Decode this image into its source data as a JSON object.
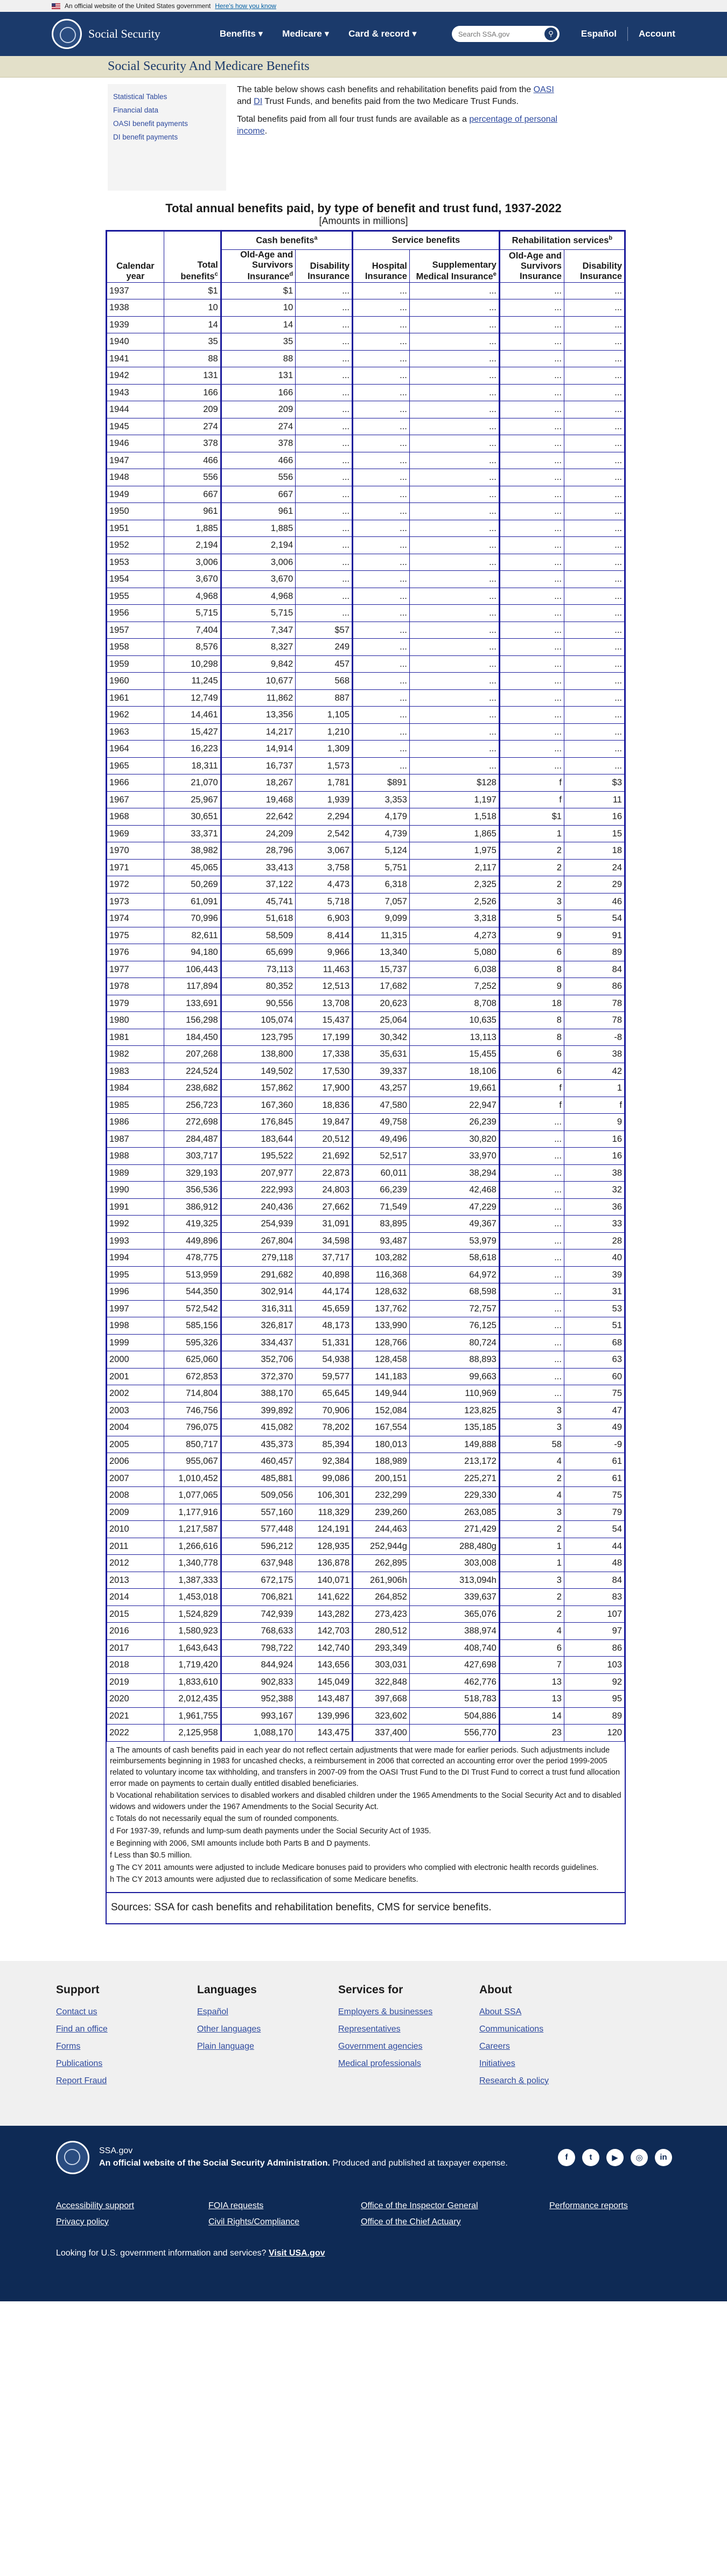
{
  "banner": {
    "text": "An official website of the United States government",
    "link": "Here's how you know"
  },
  "header": {
    "logo": "Social Security",
    "nav": [
      "Benefits",
      "Medicare",
      "Card & record"
    ],
    "search_placeholder": "Search SSA.gov",
    "lang": "Español",
    "account": "Account"
  },
  "page_title": "Social Security And Medicare Benefits",
  "sidebar": [
    "Statistical Tables",
    "Financial data",
    "OASI benefit payments",
    "DI benefit payments"
  ],
  "intro": {
    "p1_a": "The table below shows cash benefits and rehabilitation benefits paid from the ",
    "oasi": "OASI",
    "p1_b": " and ",
    "di": "DI",
    "p1_c": " Trust Funds, and benefits paid from the two Medicare Trust Funds.",
    "p2_a": "Total benefits paid from all four trust funds are available as a ",
    "p2_link": "percentage of personal income",
    "p2_b": "."
  },
  "table": {
    "title": "Total annual benefits paid, by type of benefit and trust fund, 1937-2022",
    "subtitle": "[Amounts in millions]",
    "groups": {
      "cash": "Cash benefits",
      "cash_sup": "a",
      "service": "Service benefits",
      "rehab": "Rehabilitation services",
      "rehab_sup": "b"
    },
    "headers": {
      "year": "Calendar year",
      "total": "Total benefits",
      "total_sup": "c",
      "oasi": "Old-Age and Survivors Insurance",
      "oasi_sup": "d",
      "di": "Disability Insurance",
      "hi": "Hospital Insurance",
      "smi": "Supplementary Medical Insurance",
      "smi_sup": "e",
      "r_oasi": "Old-Age and Survivors Insurance",
      "r_di": "Disability Insurance"
    },
    "rows": [
      [
        "1937",
        "$1",
        "$1",
        "...",
        "...",
        "...",
        "...",
        "..."
      ],
      [
        "1938",
        "10",
        "10",
        "...",
        "...",
        "...",
        "...",
        "..."
      ],
      [
        "1939",
        "14",
        "14",
        "...",
        "...",
        "...",
        "...",
        "..."
      ],
      [
        "1940",
        "35",
        "35",
        "...",
        "...",
        "...",
        "...",
        "..."
      ],
      [
        "1941",
        "88",
        "88",
        "...",
        "...",
        "...",
        "...",
        "..."
      ],
      [
        "1942",
        "131",
        "131",
        "...",
        "...",
        "...",
        "...",
        "..."
      ],
      [
        "1943",
        "166",
        "166",
        "...",
        "...",
        "...",
        "...",
        "..."
      ],
      [
        "1944",
        "209",
        "209",
        "...",
        "...",
        "...",
        "...",
        "..."
      ],
      [
        "1945",
        "274",
        "274",
        "...",
        "...",
        "...",
        "...",
        "..."
      ],
      [
        "1946",
        "378",
        "378",
        "...",
        "...",
        "...",
        "...",
        "..."
      ],
      [
        "1947",
        "466",
        "466",
        "...",
        "...",
        "...",
        "...",
        "..."
      ],
      [
        "1948",
        "556",
        "556",
        "...",
        "...",
        "...",
        "...",
        "..."
      ],
      [
        "1949",
        "667",
        "667",
        "...",
        "...",
        "...",
        "...",
        "..."
      ],
      [
        "1950",
        "961",
        "961",
        "...",
        "...",
        "...",
        "...",
        "..."
      ],
      [
        "1951",
        "1,885",
        "1,885",
        "...",
        "...",
        "...",
        "...",
        "..."
      ],
      [
        "1952",
        "2,194",
        "2,194",
        "...",
        "...",
        "...",
        "...",
        "..."
      ],
      [
        "1953",
        "3,006",
        "3,006",
        "...",
        "...",
        "...",
        "...",
        "..."
      ],
      [
        "1954",
        "3,670",
        "3,670",
        "...",
        "...",
        "...",
        "...",
        "..."
      ],
      [
        "1955",
        "4,968",
        "4,968",
        "...",
        "...",
        "...",
        "...",
        "..."
      ],
      [
        "1956",
        "5,715",
        "5,715",
        "...",
        "...",
        "...",
        "...",
        "..."
      ],
      [
        "1957",
        "7,404",
        "7,347",
        "$57",
        "...",
        "...",
        "...",
        "..."
      ],
      [
        "1958",
        "8,576",
        "8,327",
        "249",
        "...",
        "...",
        "...",
        "..."
      ],
      [
        "1959",
        "10,298",
        "9,842",
        "457",
        "...",
        "...",
        "...",
        "..."
      ],
      [
        "1960",
        "11,245",
        "10,677",
        "568",
        "...",
        "...",
        "...",
        "..."
      ],
      [
        "1961",
        "12,749",
        "11,862",
        "887",
        "...",
        "...",
        "...",
        "..."
      ],
      [
        "1962",
        "14,461",
        "13,356",
        "1,105",
        "...",
        "...",
        "...",
        "..."
      ],
      [
        "1963",
        "15,427",
        "14,217",
        "1,210",
        "...",
        "...",
        "...",
        "..."
      ],
      [
        "1964",
        "16,223",
        "14,914",
        "1,309",
        "...",
        "...",
        "...",
        "..."
      ],
      [
        "1965",
        "18,311",
        "16,737",
        "1,573",
        "...",
        "...",
        "...",
        "..."
      ],
      [
        "1966",
        "21,070",
        "18,267",
        "1,781",
        "$891",
        "$128",
        "f",
        "$3"
      ],
      [
        "1967",
        "25,967",
        "19,468",
        "1,939",
        "3,353",
        "1,197",
        "f",
        "11"
      ],
      [
        "1968",
        "30,651",
        "22,642",
        "2,294",
        "4,179",
        "1,518",
        "$1",
        "16"
      ],
      [
        "1969",
        "33,371",
        "24,209",
        "2,542",
        "4,739",
        "1,865",
        "1",
        "15"
      ],
      [
        "1970",
        "38,982",
        "28,796",
        "3,067",
        "5,124",
        "1,975",
        "2",
        "18"
      ],
      [
        "1971",
        "45,065",
        "33,413",
        "3,758",
        "5,751",
        "2,117",
        "2",
        "24"
      ],
      [
        "1972",
        "50,269",
        "37,122",
        "4,473",
        "6,318",
        "2,325",
        "2",
        "29"
      ],
      [
        "1973",
        "61,091",
        "45,741",
        "5,718",
        "7,057",
        "2,526",
        "3",
        "46"
      ],
      [
        "1974",
        "70,996",
        "51,618",
        "6,903",
        "9,099",
        "3,318",
        "5",
        "54"
      ],
      [
        "1975",
        "82,611",
        "58,509",
        "8,414",
        "11,315",
        "4,273",
        "9",
        "91"
      ],
      [
        "1976",
        "94,180",
        "65,699",
        "9,966",
        "13,340",
        "5,080",
        "6",
        "89"
      ],
      [
        "1977",
        "106,443",
        "73,113",
        "11,463",
        "15,737",
        "6,038",
        "8",
        "84"
      ],
      [
        "1978",
        "117,894",
        "80,352",
        "12,513",
        "17,682",
        "7,252",
        "9",
        "86"
      ],
      [
        "1979",
        "133,691",
        "90,556",
        "13,708",
        "20,623",
        "8,708",
        "18",
        "78"
      ],
      [
        "1980",
        "156,298",
        "105,074",
        "15,437",
        "25,064",
        "10,635",
        "8",
        "78"
      ],
      [
        "1981",
        "184,450",
        "123,795",
        "17,199",
        "30,342",
        "13,113",
        "8",
        "-8"
      ],
      [
        "1982",
        "207,268",
        "138,800",
        "17,338",
        "35,631",
        "15,455",
        "6",
        "38"
      ],
      [
        "1983",
        "224,524",
        "149,502",
        "17,530",
        "39,337",
        "18,106",
        "6",
        "42"
      ],
      [
        "1984",
        "238,682",
        "157,862",
        "17,900",
        "43,257",
        "19,661",
        "f",
        "1"
      ],
      [
        "1985",
        "256,723",
        "167,360",
        "18,836",
        "47,580",
        "22,947",
        "f",
        "f"
      ],
      [
        "1986",
        "272,698",
        "176,845",
        "19,847",
        "49,758",
        "26,239",
        "...",
        "9"
      ],
      [
        "1987",
        "284,487",
        "183,644",
        "20,512",
        "49,496",
        "30,820",
        "...",
        "16"
      ],
      [
        "1988",
        "303,717",
        "195,522",
        "21,692",
        "52,517",
        "33,970",
        "...",
        "16"
      ],
      [
        "1989",
        "329,193",
        "207,977",
        "22,873",
        "60,011",
        "38,294",
        "...",
        "38"
      ],
      [
        "1990",
        "356,536",
        "222,993",
        "24,803",
        "66,239",
        "42,468",
        "...",
        "32"
      ],
      [
        "1991",
        "386,912",
        "240,436",
        "27,662",
        "71,549",
        "47,229",
        "...",
        "36"
      ],
      [
        "1992",
        "419,325",
        "254,939",
        "31,091",
        "83,895",
        "49,367",
        "...",
        "33"
      ],
      [
        "1993",
        "449,896",
        "267,804",
        "34,598",
        "93,487",
        "53,979",
        "...",
        "28"
      ],
      [
        "1994",
        "478,775",
        "279,118",
        "37,717",
        "103,282",
        "58,618",
        "...",
        "40"
      ],
      [
        "1995",
        "513,959",
        "291,682",
        "40,898",
        "116,368",
        "64,972",
        "...",
        "39"
      ],
      [
        "1996",
        "544,350",
        "302,914",
        "44,174",
        "128,632",
        "68,598",
        "...",
        "31"
      ],
      [
        "1997",
        "572,542",
        "316,311",
        "45,659",
        "137,762",
        "72,757",
        "...",
        "53"
      ],
      [
        "1998",
        "585,156",
        "326,817",
        "48,173",
        "133,990",
        "76,125",
        "...",
        "51"
      ],
      [
        "1999",
        "595,326",
        "334,437",
        "51,331",
        "128,766",
        "80,724",
        "...",
        "68"
      ],
      [
        "2000",
        "625,060",
        "352,706",
        "54,938",
        "128,458",
        "88,893",
        "...",
        "63"
      ],
      [
        "2001",
        "672,853",
        "372,370",
        "59,577",
        "141,183",
        "99,663",
        "...",
        "60"
      ],
      [
        "2002",
        "714,804",
        "388,170",
        "65,645",
        "149,944",
        "110,969",
        "...",
        "75"
      ],
      [
        "2003",
        "746,756",
        "399,892",
        "70,906",
        "152,084",
        "123,825",
        "3",
        "47"
      ],
      [
        "2004",
        "796,075",
        "415,082",
        "78,202",
        "167,554",
        "135,185",
        "3",
        "49"
      ],
      [
        "2005",
        "850,717",
        "435,373",
        "85,394",
        "180,013",
        "149,888",
        "58",
        "-9"
      ],
      [
        "2006",
        "955,067",
        "460,457",
        "92,384",
        "188,989",
        "213,172",
        "4",
        "61"
      ],
      [
        "2007",
        "1,010,452",
        "485,881",
        "99,086",
        "200,151",
        "225,271",
        "2",
        "61"
      ],
      [
        "2008",
        "1,077,065",
        "509,056",
        "106,301",
        "232,299",
        "229,330",
        "4",
        "75"
      ],
      [
        "2009",
        "1,177,916",
        "557,160",
        "118,329",
        "239,260",
        "263,085",
        "3",
        "79"
      ],
      [
        "2010",
        "1,217,587",
        "577,448",
        "124,191",
        "244,463",
        "271,429",
        "2",
        "54"
      ],
      [
        "2011",
        "1,266,616",
        "596,212",
        "128,935",
        "252,944g",
        "288,480g",
        "1",
        "44"
      ],
      [
        "2012",
        "1,340,778",
        "637,948",
        "136,878",
        "262,895",
        "303,008",
        "1",
        "48"
      ],
      [
        "2013",
        "1,387,333",
        "672,175",
        "140,071",
        "261,906h",
        "313,094h",
        "3",
        "84"
      ],
      [
        "2014",
        "1,453,018",
        "706,821",
        "141,622",
        "264,852",
        "339,637",
        "2",
        "83"
      ],
      [
        "2015",
        "1,524,829",
        "742,939",
        "143,282",
        "273,423",
        "365,076",
        "2",
        "107"
      ],
      [
        "2016",
        "1,580,923",
        "768,633",
        "142,703",
        "280,512",
        "388,974",
        "4",
        "97"
      ],
      [
        "2017",
        "1,643,643",
        "798,722",
        "142,740",
        "293,349",
        "408,740",
        "6",
        "86"
      ],
      [
        "2018",
        "1,719,420",
        "844,924",
        "143,656",
        "303,031",
        "427,698",
        "7",
        "103"
      ],
      [
        "2019",
        "1,833,610",
        "902,833",
        "145,049",
        "322,848",
        "462,776",
        "13",
        "92"
      ],
      [
        "2020",
        "2,012,435",
        "952,388",
        "143,487",
        "397,668",
        "518,783",
        "13",
        "95"
      ],
      [
        "2021",
        "1,961,755",
        "993,167",
        "139,996",
        "323,602",
        "504,886",
        "14",
        "89"
      ],
      [
        "2022",
        "2,125,958",
        "1,088,170",
        "143,475",
        "337,400",
        "556,770",
        "23",
        "120"
      ]
    ],
    "notes": [
      "a The amounts of cash benefits paid in each year do not reflect certain adjustments that were made for earlier periods. Such adjustments include reimbursements beginning in 1983 for uncashed checks, a reimbursement in 2006 that corrected an accounting error over the period 1999-2005 related to voluntary income tax withholding, and transfers in 2007-09 from the OASI Trust Fund to the DI Trust Fund to correct a trust fund allocation error made on payments to certain dually entitled disabled beneficiaries.",
      "b Vocational rehabilitation services to disabled workers and disabled children under the 1965 Amendments to the Social Security Act and to disabled widows and widowers under the 1967 Amendments to the Social Security Act.",
      "c Totals do not necessarily equal the sum of rounded components.",
      "d For 1937-39, refunds and lump-sum death payments under the Social Security Act of 1935.",
      "e Beginning with 2006, SMI amounts include both Parts B and D payments.",
      "f Less than $0.5 million.",
      "g The CY 2011 amounts were adjusted to include Medicare bonuses paid to providers who complied with electronic health records guidelines.",
      "h The CY 2013 amounts were adjusted due to reclassification of some Medicare benefits."
    ],
    "sources": "Sources: SSA for cash benefits and rehabilitation benefits, CMS for service benefits."
  },
  "footer": [
    {
      "title": "Support",
      "links": [
        "Contact us",
        "Find an office",
        "Forms",
        "Publications",
        "Report Fraud"
      ]
    },
    {
      "title": "Languages",
      "links": [
        "Español",
        "Other languages",
        "Plain language"
      ]
    },
    {
      "title": "Services for",
      "links": [
        "Employers & businesses",
        "Representatives",
        "Government agencies",
        "Medical professionals"
      ]
    },
    {
      "title": "About",
      "links": [
        "About SSA",
        "Communications",
        "Careers",
        "Initiatives",
        "Research & policy"
      ]
    }
  ],
  "bottom": {
    "site": "SSA.gov",
    "official_bold": "An official website of the Social Security Administration.",
    "official_rest": " Produced and published at taxpayer expense.",
    "social": [
      "f",
      "t",
      "▶",
      "◎",
      "in"
    ],
    "links": [
      "Accessibility support",
      "FOIA requests",
      "Office of the Inspector General",
      "Performance reports",
      "Privacy policy",
      "Civil Rights/Compliance",
      "Office of the Chief Actuary"
    ],
    "more_text": "Looking for U.S. government information and services? ",
    "more_link": "Visit USA.gov"
  }
}
